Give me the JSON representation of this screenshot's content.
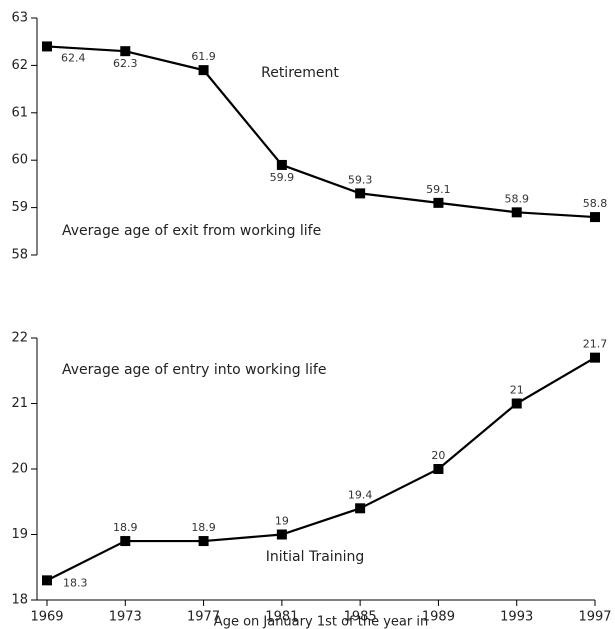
{
  "chart_data": [
    {
      "type": "line",
      "annotations": [
        "Retirement",
        "Average age of exit from working life"
      ],
      "series": [
        {
          "color": "#000000",
          "values": [
            62.4,
            62.3,
            61.9,
            59.9,
            59.3,
            59.1,
            58.9,
            58.8
          ]
        }
      ],
      "ylim": [
        58,
        63
      ],
      "yticks": [
        58,
        59,
        60,
        61,
        62,
        63
      ]
    },
    {
      "type": "line",
      "annotations": [
        "Average age of entry into working life",
        "Initial Training"
      ],
      "xlabel": "Age on January 1st of the year in",
      "x": [
        1969,
        1973,
        1977,
        1981,
        1985,
        1989,
        1993,
        1997
      ],
      "xlim": [
        1969,
        1997
      ],
      "xticks": [
        1969,
        1973,
        1977,
        1981,
        1985,
        1989,
        1993,
        1997
      ],
      "series": [
        {
          "color": "#000000",
          "values": [
            18.3,
            18.9,
            18.9,
            19,
            19.4,
            20,
            21,
            21.7
          ]
        }
      ],
      "ylim": [
        18,
        22
      ],
      "yticks": [
        18,
        19,
        20,
        21,
        22
      ]
    }
  ]
}
